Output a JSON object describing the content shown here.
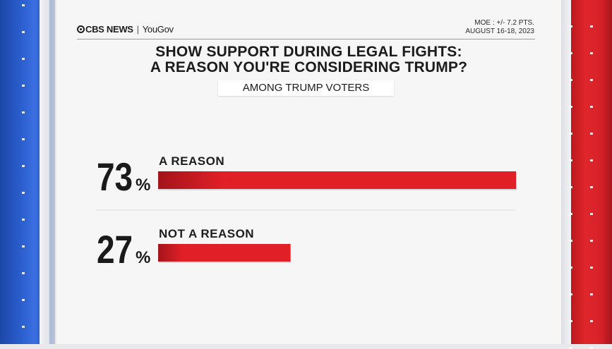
{
  "header": {
    "brand": "CBS NEWS",
    "partner": "YouGov",
    "moe": "MOE : +/- 7.2 PTS.",
    "dates": "AUGUST 16-18, 2023"
  },
  "title_line1": "SHOW SUPPORT DURING LEGAL FIGHTS:",
  "title_line2": "A REASON YOU'RE CONSIDERING TRUMP?",
  "subtitle": "AMONG TRUMP VOTERS",
  "colors": {
    "bar": "#e01f26",
    "bar_dark": "#a3141a"
  },
  "chart_data": {
    "type": "bar",
    "orientation": "horizontal",
    "title": "SHOW SUPPORT DURING LEGAL FIGHTS: A REASON YOU'RE CONSIDERING TRUMP?",
    "subtitle": "AMONG TRUMP VOTERS",
    "categories": [
      "A REASON",
      "NOT A REASON"
    ],
    "values": [
      73,
      27
    ],
    "value_labels": [
      "73",
      "27"
    ],
    "unit": "%",
    "xlim": [
      0,
      73
    ],
    "grid": false,
    "legend": "none"
  }
}
